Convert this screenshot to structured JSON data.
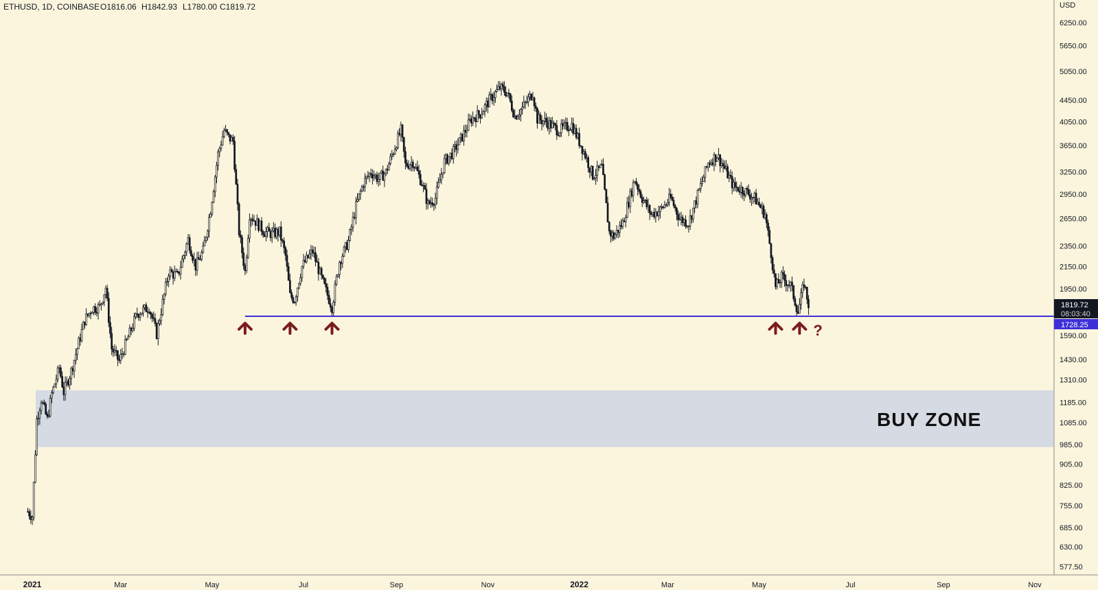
{
  "header": {
    "symbol": "ETHUSD, 1D, COINBASE",
    "open": "O1816.06",
    "high": "H1842.93",
    "low": "L1780.00",
    "close": "C1819.72"
  },
  "currency": "USD",
  "price_scale": {
    "ticks": [
      "6250.00",
      "5650.00",
      "5050.00",
      "4450.00",
      "4050.00",
      "3650.00",
      "3250.00",
      "2950.00",
      "2650.00",
      "2350.00",
      "2150.00",
      "1950.00",
      "1590.00",
      "1430.00",
      "1310.00",
      "1185.00",
      "1085.00",
      "985.00",
      "905.00",
      "825.00",
      "755.00",
      "685.00",
      "630.00",
      "577.50"
    ],
    "current_price": "1819.72",
    "countdown": "08:03:40",
    "support_price": "1728.25"
  },
  "time_axis": {
    "labels": [
      {
        "text": "2021",
        "bold": true,
        "date": "2021-01-01"
      },
      {
        "text": "Mar",
        "bold": false,
        "date": "2021-03-01"
      },
      {
        "text": "May",
        "bold": false,
        "date": "2021-05-01"
      },
      {
        "text": "Jul",
        "bold": false,
        "date": "2021-07-01"
      },
      {
        "text": "Sep",
        "bold": false,
        "date": "2021-09-01"
      },
      {
        "text": "Nov",
        "bold": false,
        "date": "2021-11-01"
      },
      {
        "text": "2022",
        "bold": true,
        "date": "2022-01-01"
      },
      {
        "text": "Mar",
        "bold": false,
        "date": "2022-03-01"
      },
      {
        "text": "May",
        "bold": false,
        "date": "2022-05-01"
      },
      {
        "text": "Jul",
        "bold": false,
        "date": "2022-07-01"
      },
      {
        "text": "Sep",
        "bold": false,
        "date": "2022-09-01"
      },
      {
        "text": "Nov",
        "bold": false,
        "date": "2022-11-01"
      }
    ]
  },
  "annotations": {
    "buy_zone_label": "BUY ZONE",
    "question_mark": "?",
    "buy_zone_range": [
      975,
      1250
    ],
    "support_arrow_dates": [
      "2021-05-23",
      "2021-06-22",
      "2021-07-20",
      "2022-05-12",
      "2022-05-28"
    ]
  },
  "colors": {
    "background": "#fbf5dd",
    "candles": "#131722",
    "support_line": "#3d30d8",
    "buy_zone": "#d5dae3",
    "arrows": "#7b1c1c",
    "price_label_bg": "#131722",
    "support_label_bg": "#3d30d8"
  },
  "chart_data": {
    "type": "candlestick",
    "title": "ETHUSD, 1D, COINBASE",
    "scale": "log",
    "ylim": [
      560,
      7000
    ],
    "xlim": [
      "2020-12-29",
      "2022-11-30"
    ],
    "support_level": 1728.25,
    "series": [
      {
        "x": [
          "2020-12-29",
          "2021-01-01",
          "2021-01-04",
          "2021-01-07",
          "2021-01-11",
          "2021-01-14",
          "2021-01-19",
          "2021-01-22",
          "2021-01-27",
          "2021-02-01",
          "2021-02-05",
          "2021-02-10",
          "2021-02-15",
          "2021-02-19",
          "2021-02-23",
          "2021-02-28",
          "2021-03-05",
          "2021-03-12",
          "2021-03-20",
          "2021-03-25",
          "2021-04-02",
          "2021-04-08",
          "2021-04-15",
          "2021-04-20",
          "2021-04-25",
          "2021-04-30",
          "2021-05-05",
          "2021-05-09",
          "2021-05-12",
          "2021-05-15",
          "2021-05-19",
          "2021-05-23",
          "2021-05-26",
          "2021-05-31",
          "2021-06-05",
          "2021-06-10",
          "2021-06-15",
          "2021-06-19",
          "2021-06-22",
          "2021-06-25",
          "2021-06-30",
          "2021-07-07",
          "2021-07-14",
          "2021-07-20",
          "2021-07-25",
          "2021-07-31",
          "2021-08-05",
          "2021-08-10",
          "2021-08-15",
          "2021-08-20",
          "2021-08-25",
          "2021-09-01",
          "2021-09-04",
          "2021-09-07",
          "2021-09-12",
          "2021-09-18",
          "2021-09-22",
          "2021-09-27",
          "2021-10-03",
          "2021-10-09",
          "2021-10-15",
          "2021-10-21",
          "2021-10-27",
          "2021-11-02",
          "2021-11-09",
          "2021-11-14",
          "2021-11-19",
          "2021-11-24",
          "2021-12-01",
          "2021-12-04",
          "2021-12-10",
          "2021-12-18",
          "2021-12-27",
          "2022-01-05",
          "2022-01-10",
          "2022-01-16",
          "2022-01-21",
          "2022-01-24",
          "2022-01-30",
          "2022-02-07",
          "2022-02-12",
          "2022-02-18",
          "2022-02-24",
          "2022-03-03",
          "2022-03-09",
          "2022-03-15",
          "2022-03-22",
          "2022-03-28",
          "2022-04-03",
          "2022-04-08",
          "2022-04-14",
          "2022-04-21",
          "2022-04-28",
          "2022-05-05",
          "2022-05-09",
          "2022-05-12",
          "2022-05-16",
          "2022-05-22",
          "2022-05-27",
          "2022-05-31",
          "2022-06-03"
        ],
        "close": [
          735,
          720,
          1100,
          1200,
          1100,
          1230,
          1380,
          1240,
          1360,
          1540,
          1700,
          1790,
          1800,
          1960,
          1500,
          1420,
          1550,
          1750,
          1800,
          1600,
          2100,
          2060,
          2420,
          2150,
          2300,
          2760,
          3520,
          3900,
          3780,
          3720,
          2500,
          2100,
          2700,
          2600,
          2500,
          2480,
          2500,
          2250,
          1890,
          1860,
          2150,
          2300,
          2000,
          1800,
          2200,
          2400,
          2800,
          3100,
          3250,
          3150,
          3250,
          3700,
          3900,
          3350,
          3400,
          3100,
          2820,
          2900,
          3400,
          3550,
          3800,
          4100,
          4200,
          4450,
          4700,
          4600,
          4150,
          4300,
          4600,
          4100,
          4050,
          3900,
          4000,
          3500,
          3200,
          3320,
          2500,
          2450,
          2600,
          3150,
          2900,
          2700,
          2750,
          2900,
          2650,
          2600,
          3000,
          3380,
          3500,
          3300,
          3050,
          3000,
          2900,
          2700,
          2280,
          1960,
          2050,
          1980,
          1760,
          2000,
          1820
        ]
      }
    ]
  }
}
